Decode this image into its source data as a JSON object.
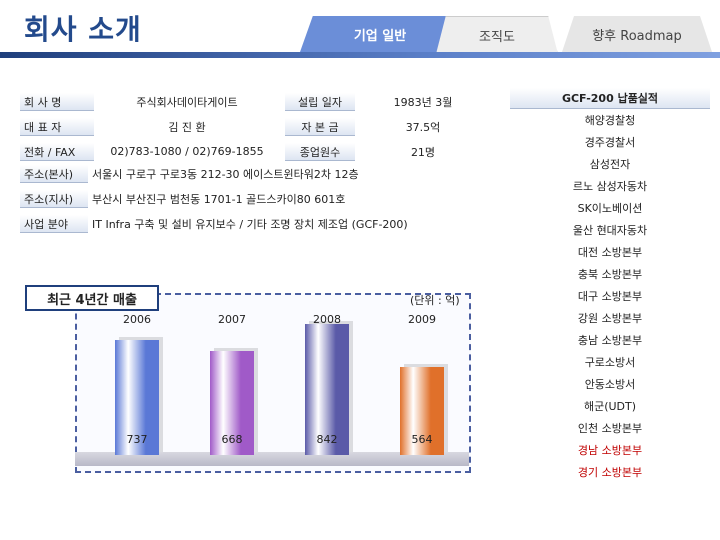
{
  "page": {
    "title": "회사 소개",
    "tabs": [
      "기업 일반",
      "조직도",
      "향후 Roadmap"
    ]
  },
  "info": {
    "company_name_label": "회 사 명",
    "company_name": "주식회사데이타게이트",
    "founded_label": "설립 일자",
    "founded": "1983년 3월",
    "ceo_label": "대 표 자",
    "ceo": "김 진 환",
    "capital_label": "자 본 금",
    "capital": "37.5억",
    "phone_label": "전화 / FAX",
    "phone": "02)783-1080 / 02)769-1855",
    "employees_label": "종업원수",
    "employees": "21명",
    "hq_label": "주소(본사)",
    "hq": "서울시 구로구 구로3동 212-30 에이스트윈타워2차 12층",
    "branch_label": "주소(지사)",
    "branch": "부산시 부산진구 범천동 1701-1 골드스카이80 601호",
    "business_label": "사업 분야",
    "business": "IT Infra 구축 및 설비 유지보수 / 기타 조명 장치 제조업 (GCF-200)"
  },
  "clients": {
    "header": "GCF-200 납품실적",
    "items": [
      {
        "name": "해양경찰청",
        "color": "#222222"
      },
      {
        "name": "경주경찰서",
        "color": "#222222"
      },
      {
        "name": "삼성전자",
        "color": "#222222"
      },
      {
        "name": "르노 삼성자동차",
        "color": "#222222"
      },
      {
        "name": "SK이노베이션",
        "color": "#222222"
      },
      {
        "name": "울산 현대자동차",
        "color": "#222222"
      },
      {
        "name": "대전 소방본부",
        "color": "#222222"
      },
      {
        "name": "충북 소방본부",
        "color": "#222222"
      },
      {
        "name": "대구 소방본부",
        "color": "#222222"
      },
      {
        "name": "강원 소방본부",
        "color": "#222222"
      },
      {
        "name": "충남 소방본부",
        "color": "#222222"
      },
      {
        "name": "구로소방서",
        "color": "#222222"
      },
      {
        "name": "안동소방서",
        "color": "#222222"
      },
      {
        "name": "해군(UDT)",
        "color": "#222222"
      },
      {
        "name": "인천 소방본부",
        "color": "#222222"
      },
      {
        "name": "경남 소방본부",
        "color": "#c00000"
      },
      {
        "name": "경기 소방본부",
        "color": "#c00000"
      }
    ]
  },
  "chart": {
    "title": "최근 4년간 매출",
    "unit": "(단위 : 억)"
  },
  "chart_data": {
    "type": "bar",
    "title": "최근 4년간 매출",
    "categories": [
      "2006",
      "2007",
      "2008",
      "2009"
    ],
    "values": [
      737,
      668,
      842,
      564
    ],
    "bar_colors": [
      "#5a78d6",
      "#a05ac8",
      "#5a5aa8",
      "#e0702a"
    ],
    "ylim": [
      0,
      900
    ],
    "grid": false,
    "legend": "none"
  }
}
